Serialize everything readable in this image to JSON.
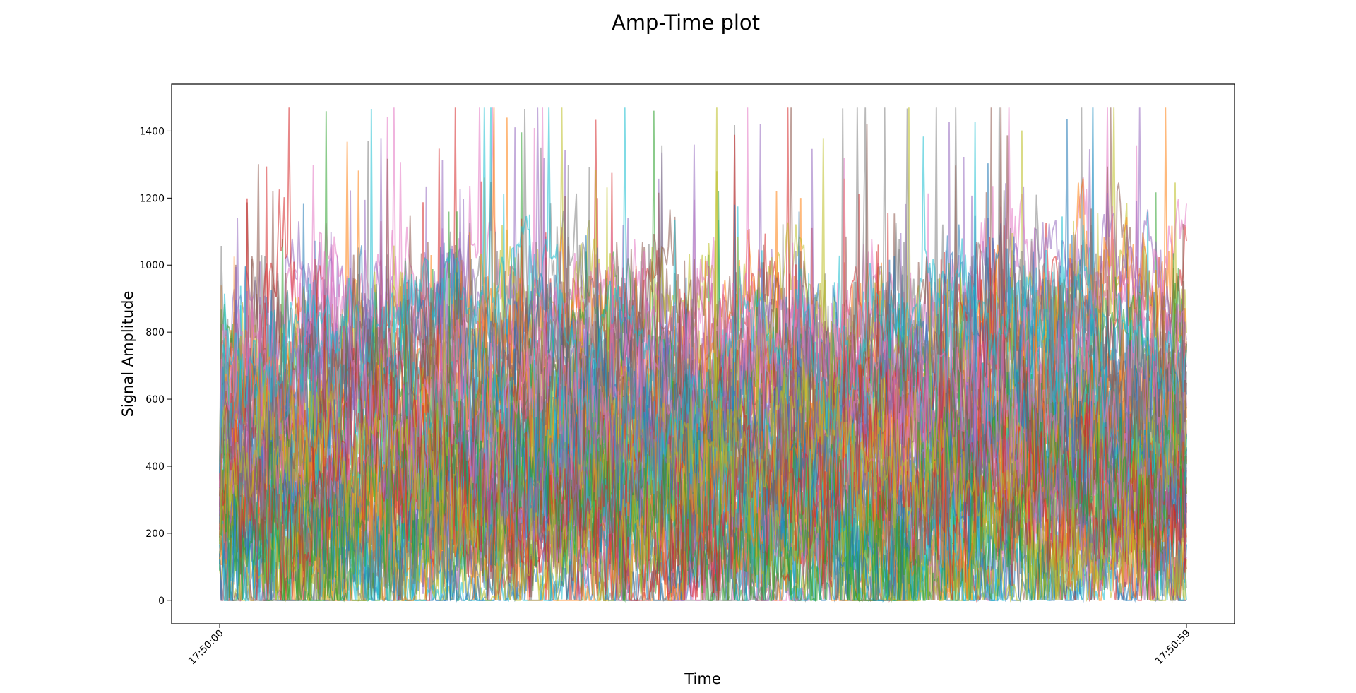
{
  "chart_data": {
    "type": "line",
    "title": "Amp-Time plot",
    "xlabel": "Time",
    "ylabel": "Signal Amplitude",
    "x_tick_labels": [
      "17:50:00",
      "17:50:59"
    ],
    "x_range": [
      "17:50:00",
      "17:50:59"
    ],
    "y_ticks": [
      0,
      200,
      400,
      600,
      800,
      1000,
      1200,
      1400
    ],
    "ylim": [
      -70,
      1540
    ],
    "grid": false,
    "legend": "none",
    "series_count": 60,
    "samples_per_series": 600,
    "amplitude_range": [
      0,
      1470
    ],
    "series_colors": [
      "#1f77b4",
      "#ff7f0e",
      "#2ca02c",
      "#d62728",
      "#9467bd",
      "#8c564b",
      "#e377c2",
      "#7f7f7f",
      "#bcbd22",
      "#17becf"
    ],
    "line_alpha": 0.55
  }
}
